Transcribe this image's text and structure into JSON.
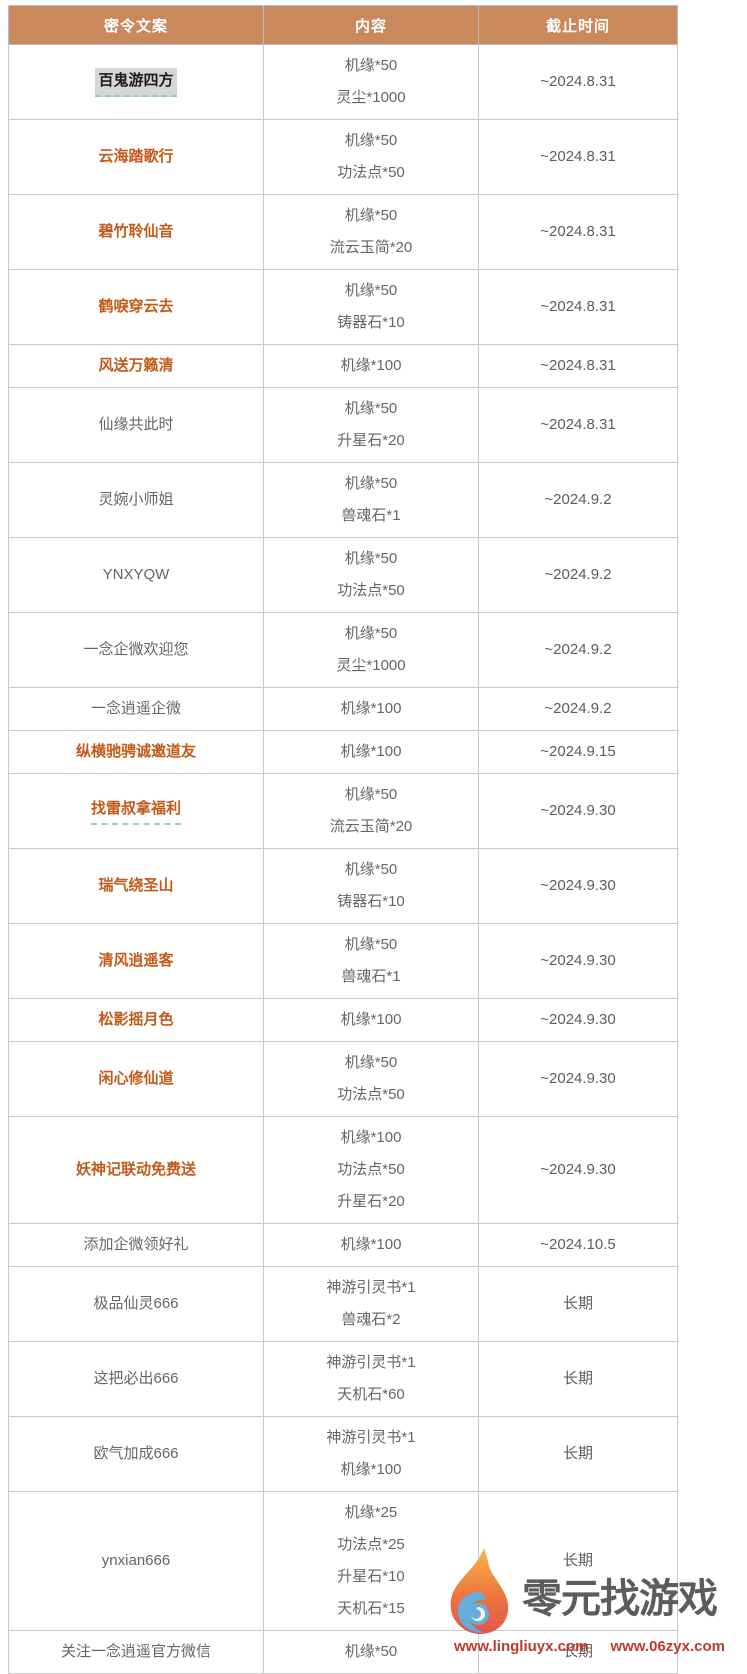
{
  "table": {
    "columns": [
      "密令文案",
      "内容",
      "截止时间"
    ],
    "rows": [
      {
        "code": "百鬼游四方",
        "style": "selected",
        "items": [
          "机缘*50",
          "灵尘*1000"
        ],
        "deadline": "~2024.8.31"
      },
      {
        "code": "云海踏歌行",
        "style": "orange",
        "items": [
          "机缘*50",
          "功法点*50"
        ],
        "deadline": "~2024.8.31"
      },
      {
        "code": "碧竹聆仙音",
        "style": "orange",
        "items": [
          "机缘*50",
          "流云玉简*20"
        ],
        "deadline": "~2024.8.31"
      },
      {
        "code": "鹤唳穿云去",
        "style": "orange",
        "items": [
          "机缘*50",
          "铸器石*10"
        ],
        "deadline": "~2024.8.31"
      },
      {
        "code": "风送万籁清",
        "style": "orange",
        "items": [
          "机缘*100"
        ],
        "deadline": "~2024.8.31"
      },
      {
        "code": "仙缘共此时",
        "style": "plain",
        "items": [
          "机缘*50",
          "升星石*20"
        ],
        "deadline": "~2024.8.31"
      },
      {
        "code": "灵婉小师姐",
        "style": "plain",
        "items": [
          "机缘*50",
          "兽魂石*1"
        ],
        "deadline": "~2024.9.2"
      },
      {
        "code": "YNXYQW",
        "style": "plain",
        "items": [
          "机缘*50",
          "功法点*50"
        ],
        "deadline": "~2024.9.2"
      },
      {
        "code": "一念企微欢迎您",
        "style": "plain",
        "items": [
          "机缘*50",
          "灵尘*1000"
        ],
        "deadline": "~2024.9.2"
      },
      {
        "code": "一念逍遥企微",
        "style": "plain",
        "items": [
          "机缘*100"
        ],
        "deadline": "~2024.9.2"
      },
      {
        "code": "纵横驰骋诚邀道友",
        "style": "orange",
        "items": [
          "机缘*100"
        ],
        "deadline": "~2024.9.15"
      },
      {
        "code": "找雷叔拿福利",
        "style": "orange-underline",
        "items": [
          "机缘*50",
          "流云玉简*20"
        ],
        "deadline": "~2024.9.30"
      },
      {
        "code": "瑞气绕圣山",
        "style": "orange",
        "items": [
          "机缘*50",
          "铸器石*10"
        ],
        "deadline": "~2024.9.30"
      },
      {
        "code": "清风逍遥客",
        "style": "orange",
        "items": [
          "机缘*50",
          "兽魂石*1"
        ],
        "deadline": "~2024.9.30"
      },
      {
        "code": "松影摇月色",
        "style": "orange",
        "items": [
          "机缘*100"
        ],
        "deadline": "~2024.9.30"
      },
      {
        "code": "闲心修仙道",
        "style": "orange",
        "items": [
          "机缘*50",
          "功法点*50"
        ],
        "deadline": "~2024.9.30"
      },
      {
        "code": "妖神记联动免费送",
        "style": "orange",
        "items": [
          "机缘*100",
          "功法点*50",
          "升星石*20"
        ],
        "deadline": "~2024.9.30"
      },
      {
        "code": "添加企微领好礼",
        "style": "plain",
        "items": [
          "机缘*100"
        ],
        "deadline": "~2024.10.5"
      },
      {
        "code": "极品仙灵666",
        "style": "plain",
        "items": [
          "神游引灵书*1",
          "兽魂石*2"
        ],
        "deadline": "长期"
      },
      {
        "code": "这把必出666",
        "style": "plain",
        "items": [
          "神游引灵书*1",
          "天机石*60"
        ],
        "deadline": "长期"
      },
      {
        "code": "欧气加成666",
        "style": "plain",
        "items": [
          "神游引灵书*1",
          "机缘*100"
        ],
        "deadline": "长期"
      },
      {
        "code": "ynxian666",
        "style": "plain",
        "items": [
          "机缘*25",
          "功法点*25",
          "升星石*10",
          "天机石*15"
        ],
        "deadline": "长期"
      },
      {
        "code": "关注一念逍遥官方微信",
        "style": "plain",
        "items": [
          "机缘*50"
        ],
        "deadline": "长期"
      }
    ]
  },
  "watermark": {
    "brand": "零元找游戏",
    "url_1": "www.lingliuyx.com",
    "url_2": "www.06zyx.com"
  },
  "colors": {
    "header_bg": "#c9895d",
    "header_text": "#ffffff",
    "code_orange": "#c35a1b",
    "body_gray": "#666666",
    "dash_underline_green": "#8fd3a8",
    "selected_highlight": "#d5d5d5",
    "watermark_url_red": "#be3a2b",
    "border_gray": "#c5cbd1"
  }
}
